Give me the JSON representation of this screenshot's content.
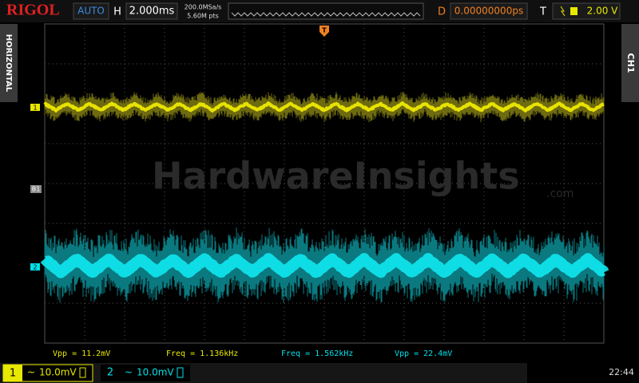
{
  "header": {
    "brand": "RIGOL",
    "mode": "AUTO",
    "timebase_label": "H",
    "timebase": "2.000ms",
    "sample_rate": "200.0MSa/s",
    "memory_depth": "5.60M pts",
    "delay_label": "D",
    "delay": "0.00000000ps",
    "trigger_label": "T",
    "trigger_level": "2.00 V"
  },
  "side_tabs": {
    "left": "HORIZONTAL",
    "right": "CH1"
  },
  "markers": {
    "trigger": "T",
    "ch1": "1",
    "bus": "B1",
    "ch2": "2"
  },
  "watermark": {
    "name": "HardwareInsights",
    "suffix": ".com"
  },
  "measurements": [
    "Vpp = 11.2mV",
    "Freq = 1.136kHz",
    "Freq = 1.562kHz",
    "Vpp = 22.4mV"
  ],
  "channels": [
    {
      "number": "1",
      "coupling": "~",
      "scale": "10.0mV"
    },
    {
      "number": "2",
      "coupling": "~",
      "scale": "10.0mV"
    }
  ],
  "clock": "22:44"
}
